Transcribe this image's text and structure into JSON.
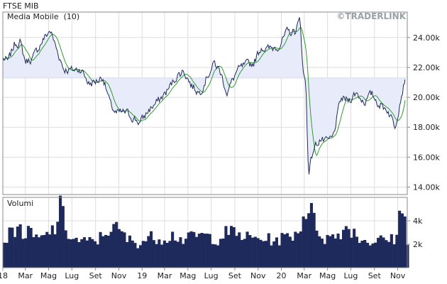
{
  "colors": {
    "price_line": "#1f2a5c",
    "moving_avg": "#2e9d2e",
    "band": "#e8ecfa",
    "volume": "#1f2a5c",
    "grid": "#dddddd",
    "watermark": "#9aa0a8",
    "title": "#222222"
  },
  "chart_data": [
    {
      "type": "line",
      "title": "FTSE MIB",
      "watermark": "©TRADERLINK",
      "legend": {
        "placement": "top-left"
      },
      "series": [
        {
          "name": "Media Mobile  (10)",
          "role": "moving-average"
        },
        {
          "name": "",
          "role": "price"
        }
      ],
      "reference_level": 21300,
      "x_ticks": [
        "18",
        "Mar",
        "Mag",
        "Lug",
        "Set",
        "Nov",
        "19",
        "Mar",
        "Mag",
        "Lug",
        "Set",
        "Nov",
        "20",
        "Mar",
        "Mag",
        "Lug",
        "Set",
        "Nov"
      ],
      "y_ticks": [
        "24.00k",
        "22.00k",
        "20.00k",
        "18.00k",
        "16.00k",
        "14.00k"
      ],
      "ylim": [
        13500,
        25700
      ],
      "grid": true,
      "price_keypoints": [
        [
          "2018-01-01",
          22600
        ],
        [
          "2018-01-15",
          22400
        ],
        [
          "2018-02-01",
          23600
        ],
        [
          "2018-02-15",
          23700
        ],
        [
          "2018-03-01",
          22400
        ],
        [
          "2018-03-20",
          22600
        ],
        [
          "2018-04-15",
          23800
        ],
        [
          "2018-05-05",
          24500
        ],
        [
          "2018-05-25",
          23000
        ],
        [
          "2018-06-10",
          21900
        ],
        [
          "2018-07-01",
          21800
        ],
        [
          "2018-07-25",
          21900
        ],
        [
          "2018-08-15",
          20900
        ],
        [
          "2018-09-05",
          21100
        ],
        [
          "2018-09-20",
          21400
        ],
        [
          "2018-10-10",
          19500
        ],
        [
          "2018-10-25",
          18900
        ],
        [
          "2018-11-20",
          19000
        ],
        [
          "2018-12-10",
          18600
        ],
        [
          "2018-12-27",
          18300
        ],
        [
          "2019-01-20",
          19200
        ],
        [
          "2019-02-15",
          19800
        ],
        [
          "2019-03-10",
          20500
        ],
        [
          "2019-04-01",
          21400
        ],
        [
          "2019-04-20",
          21800
        ],
        [
          "2019-05-10",
          20800
        ],
        [
          "2019-06-01",
          20300
        ],
        [
          "2019-06-20",
          21400
        ],
        [
          "2019-07-10",
          22300
        ],
        [
          "2019-07-25",
          21700
        ],
        [
          "2019-08-12",
          20300
        ],
        [
          "2019-09-05",
          21700
        ],
        [
          "2019-09-25",
          22100
        ],
        [
          "2019-10-20",
          22300
        ],
        [
          "2019-11-10",
          23400
        ],
        [
          "2019-11-25",
          23200
        ],
        [
          "2019-12-10",
          23300
        ],
        [
          "2019-12-27",
          23500
        ],
        [
          "2020-01-15",
          24300
        ],
        [
          "2020-02-05",
          24400
        ],
        [
          "2020-02-19",
          25200
        ],
        [
          "2020-02-28",
          21500
        ],
        [
          "2020-03-05",
          21000
        ],
        [
          "2020-03-12",
          15000
        ],
        [
          "2020-03-25",
          16500
        ],
        [
          "2020-04-10",
          17200
        ],
        [
          "2020-04-28",
          17000
        ],
        [
          "2020-05-15",
          17300
        ],
        [
          "2020-06-05",
          19900
        ],
        [
          "2020-06-25",
          19800
        ],
        [
          "2020-07-15",
          20300
        ],
        [
          "2020-08-05",
          19700
        ],
        [
          "2020-08-25",
          20200
        ],
        [
          "2020-09-15",
          19500
        ],
        [
          "2020-10-05",
          19200
        ],
        [
          "2020-10-25",
          18100
        ],
        [
          "2020-11-09",
          20000
        ],
        [
          "2020-11-20",
          21200
        ]
      ]
    },
    {
      "type": "bar",
      "title": "Volumi",
      "y_ticks": [
        "4k",
        "2k"
      ],
      "ylim": [
        0,
        6000
      ],
      "grid": true,
      "volume_keypoints": [
        [
          "2018-01-01",
          2300
        ],
        [
          "2018-01-20",
          3000
        ],
        [
          "2018-02-05",
          3600
        ],
        [
          "2018-02-20",
          2800
        ],
        [
          "2018-03-05",
          3000
        ],
        [
          "2018-03-20",
          2600
        ],
        [
          "2018-04-10",
          2400
        ],
        [
          "2018-04-25",
          2900
        ],
        [
          "2018-05-15",
          3400
        ],
        [
          "2018-05-29",
          5200
        ],
        [
          "2018-06-15",
          3000
        ],
        [
          "2018-07-01",
          2400
        ],
        [
          "2018-08-01",
          2200
        ],
        [
          "2018-09-01",
          2300
        ],
        [
          "2018-09-20",
          2900
        ],
        [
          "2018-10-05",
          3400
        ],
        [
          "2018-10-25",
          3300
        ],
        [
          "2018-11-20",
          2400
        ],
        [
          "2018-12-20",
          2100
        ],
        [
          "2019-01-20",
          2600
        ],
        [
          "2019-02-20",
          2500
        ],
        [
          "2019-03-20",
          2800
        ],
        [
          "2019-04-20",
          2300
        ],
        [
          "2019-05-15",
          2800
        ],
        [
          "2019-06-15",
          2700
        ],
        [
          "2019-07-15",
          2400
        ],
        [
          "2019-08-10",
          3100
        ],
        [
          "2019-09-10",
          2800
        ],
        [
          "2019-10-10",
          2500
        ],
        [
          "2019-11-10",
          2500
        ],
        [
          "2019-12-15",
          2300
        ],
        [
          "2020-01-15",
          2700
        ],
        [
          "2020-02-10",
          3000
        ],
        [
          "2020-02-28",
          4800
        ],
        [
          "2020-03-12",
          5300
        ],
        [
          "2020-03-25",
          3700
        ],
        [
          "2020-04-20",
          2500
        ],
        [
          "2020-05-20",
          2700
        ],
        [
          "2020-06-20",
          3600
        ],
        [
          "2020-07-20",
          2500
        ],
        [
          "2020-08-20",
          2200
        ],
        [
          "2020-09-20",
          2400
        ],
        [
          "2020-10-20",
          2400
        ],
        [
          "2020-11-05",
          4800
        ],
        [
          "2020-11-18",
          3900
        ],
        [
          "2020-11-24",
          2200
        ]
      ]
    }
  ]
}
